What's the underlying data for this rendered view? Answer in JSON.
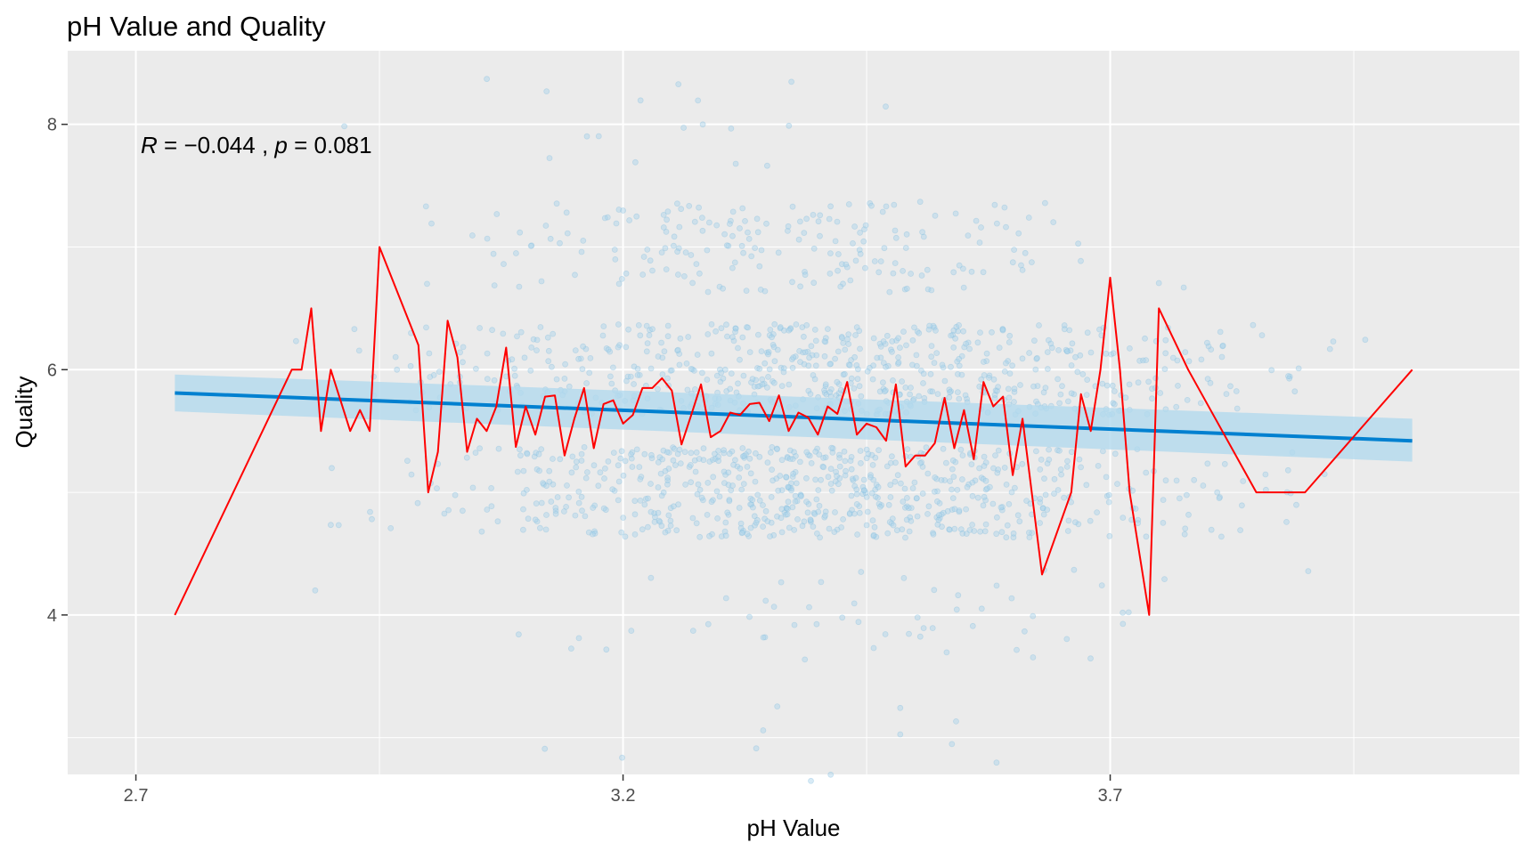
{
  "chart_data": {
    "type": "scatter",
    "title": "pH Value and Quality",
    "xlabel": "pH Value",
    "ylabel": "Quality",
    "xlim": [
      2.63,
      4.12
    ],
    "ylim": [
      2.7,
      8.6
    ],
    "x_ticks": [
      2.7,
      3.2,
      3.7
    ],
    "x_tick_labels": [
      "2.7",
      "3.2",
      "3.7"
    ],
    "x_minor_ticks": [
      2.95,
      3.45,
      3.95
    ],
    "y_ticks": [
      4,
      6,
      8
    ],
    "y_tick_labels": [
      "4",
      "6",
      "8"
    ],
    "y_minor_ticks": [
      3,
      5,
      7
    ],
    "grid": true,
    "legend": "none",
    "annotation": {
      "r_symbol": "R",
      "eq1": " = ",
      "minus": "−",
      "r_value": "0.044",
      "sep": " , ",
      "p_symbol": "p",
      "eq2": " = ",
      "p_value": "0.081",
      "x": 2.705,
      "y": 7.83
    },
    "colors": {
      "panel": "#ebebeb",
      "grid": "#ffffff",
      "points": "#a9d3ea",
      "points_stroke": "#7fb9dc",
      "trend_line": "#0080d0",
      "ribbon": "#b3d9ee",
      "mean_line": "#ff0000"
    },
    "series": [
      {
        "kind": "jittered-points",
        "note_free": true,
        "clusters": [
          {
            "quality": 3,
            "x_range": [
              2.74,
              3.9
            ],
            "count": 12
          },
          {
            "quality": 4,
            "x_range": [
              2.88,
              3.98
            ],
            "count": 55
          },
          {
            "quality": 5,
            "x_range": [
              2.88,
              3.92
            ],
            "count": 680
          },
          {
            "quality": 6,
            "x_range": [
              2.86,
              4.01
            ],
            "count": 640
          },
          {
            "quality": 7,
            "x_range": [
              2.92,
              3.78
            ],
            "count": 200
          },
          {
            "quality": 8,
            "x_range": [
              2.88,
              3.56
            ],
            "count": 18
          }
        ]
      },
      {
        "kind": "regression",
        "x": [
          2.74,
          4.01
        ],
        "y": [
          5.81,
          5.42
        ],
        "ci_lower": [
          5.66,
          5.25
        ],
        "ci_upper": [
          5.96,
          5.6
        ]
      },
      {
        "kind": "mean-line",
        "x": [
          2.74,
          2.86,
          2.87,
          2.88,
          2.89,
          2.9,
          2.91,
          2.92,
          2.93,
          2.94,
          2.95,
          2.99,
          3.0,
          3.01,
          3.02,
          3.03,
          3.04,
          3.05,
          3.06,
          3.07,
          3.08,
          3.09,
          3.1,
          3.11,
          3.12,
          3.13,
          3.14,
          3.15,
          3.16,
          3.17,
          3.18,
          3.19,
          3.2,
          3.21,
          3.22,
          3.23,
          3.24,
          3.25,
          3.26,
          3.27,
          3.28,
          3.29,
          3.3,
          3.31,
          3.32,
          3.33,
          3.34,
          3.35,
          3.36,
          3.37,
          3.38,
          3.39,
          3.4,
          3.41,
          3.42,
          3.43,
          3.44,
          3.45,
          3.46,
          3.47,
          3.48,
          3.49,
          3.5,
          3.51,
          3.52,
          3.53,
          3.54,
          3.55,
          3.56,
          3.57,
          3.58,
          3.59,
          3.6,
          3.61,
          3.63,
          3.66,
          3.67,
          3.68,
          3.69,
          3.7,
          3.71,
          3.72,
          3.74,
          3.75,
          3.78,
          3.85,
          3.9,
          4.01
        ],
        "y": [
          4.0,
          6.0,
          6.0,
          6.5,
          5.5,
          6.0,
          5.75,
          5.5,
          5.67,
          5.5,
          7.0,
          6.2,
          5.0,
          5.33,
          6.4,
          6.1,
          5.33,
          5.6,
          5.5,
          5.7,
          6.18,
          5.37,
          5.7,
          5.47,
          5.78,
          5.79,
          5.3,
          5.6,
          5.85,
          5.36,
          5.72,
          5.75,
          5.56,
          5.63,
          5.85,
          5.85,
          5.93,
          5.83,
          5.39,
          5.63,
          5.88,
          5.45,
          5.5,
          5.65,
          5.63,
          5.72,
          5.73,
          5.58,
          5.79,
          5.5,
          5.65,
          5.61,
          5.47,
          5.7,
          5.64,
          5.9,
          5.47,
          5.56,
          5.53,
          5.42,
          5.88,
          5.21,
          5.3,
          5.3,
          5.4,
          5.77,
          5.36,
          5.67,
          5.27,
          5.9,
          5.7,
          5.78,
          5.14,
          5.6,
          4.33,
          5.0,
          5.8,
          5.5,
          6.0,
          6.75,
          6.0,
          5.0,
          4.0,
          6.5,
          6.0,
          5.0,
          5.0,
          6.0
        ]
      }
    ]
  }
}
